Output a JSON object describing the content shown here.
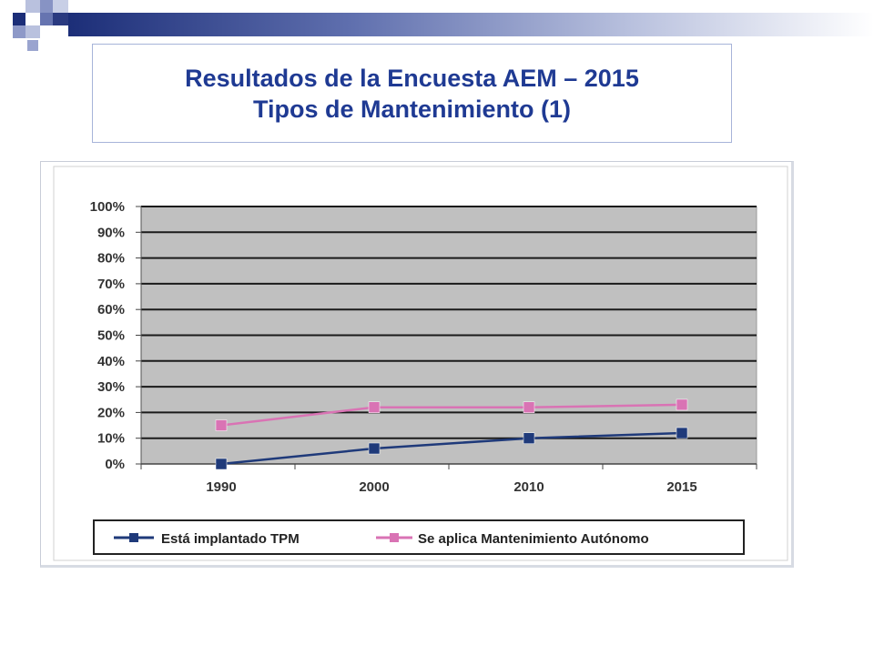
{
  "header": {
    "title_line1": "Resultados de la Encuesta AEM – 2015",
    "title_line2": "Tipos de Mantenimiento (1)"
  },
  "colors": {
    "title": "#1f3a93",
    "plot_background": "#c0c0c0",
    "series_tpm": "#1f3a7a",
    "series_autonomo": "#d973b4"
  },
  "chart_data": {
    "type": "line",
    "title": "",
    "xlabel": "",
    "ylabel": "",
    "categories": [
      "1990",
      "2000",
      "2010",
      "2015"
    ],
    "y_ticks": [
      "0%",
      "10%",
      "20%",
      "30%",
      "40%",
      "50%",
      "60%",
      "70%",
      "80%",
      "90%",
      "100%"
    ],
    "ylim": [
      0,
      100
    ],
    "grid": true,
    "legend_position": "bottom",
    "series": [
      {
        "name": "Está implantado TPM",
        "values": [
          0,
          6,
          10,
          12
        ],
        "color": "#1f3a7a",
        "marker": "square"
      },
      {
        "name": "Se aplica Mantenimiento Autónomo",
        "values": [
          15,
          22,
          22,
          23
        ],
        "color": "#d973b4",
        "marker": "square"
      }
    ]
  }
}
